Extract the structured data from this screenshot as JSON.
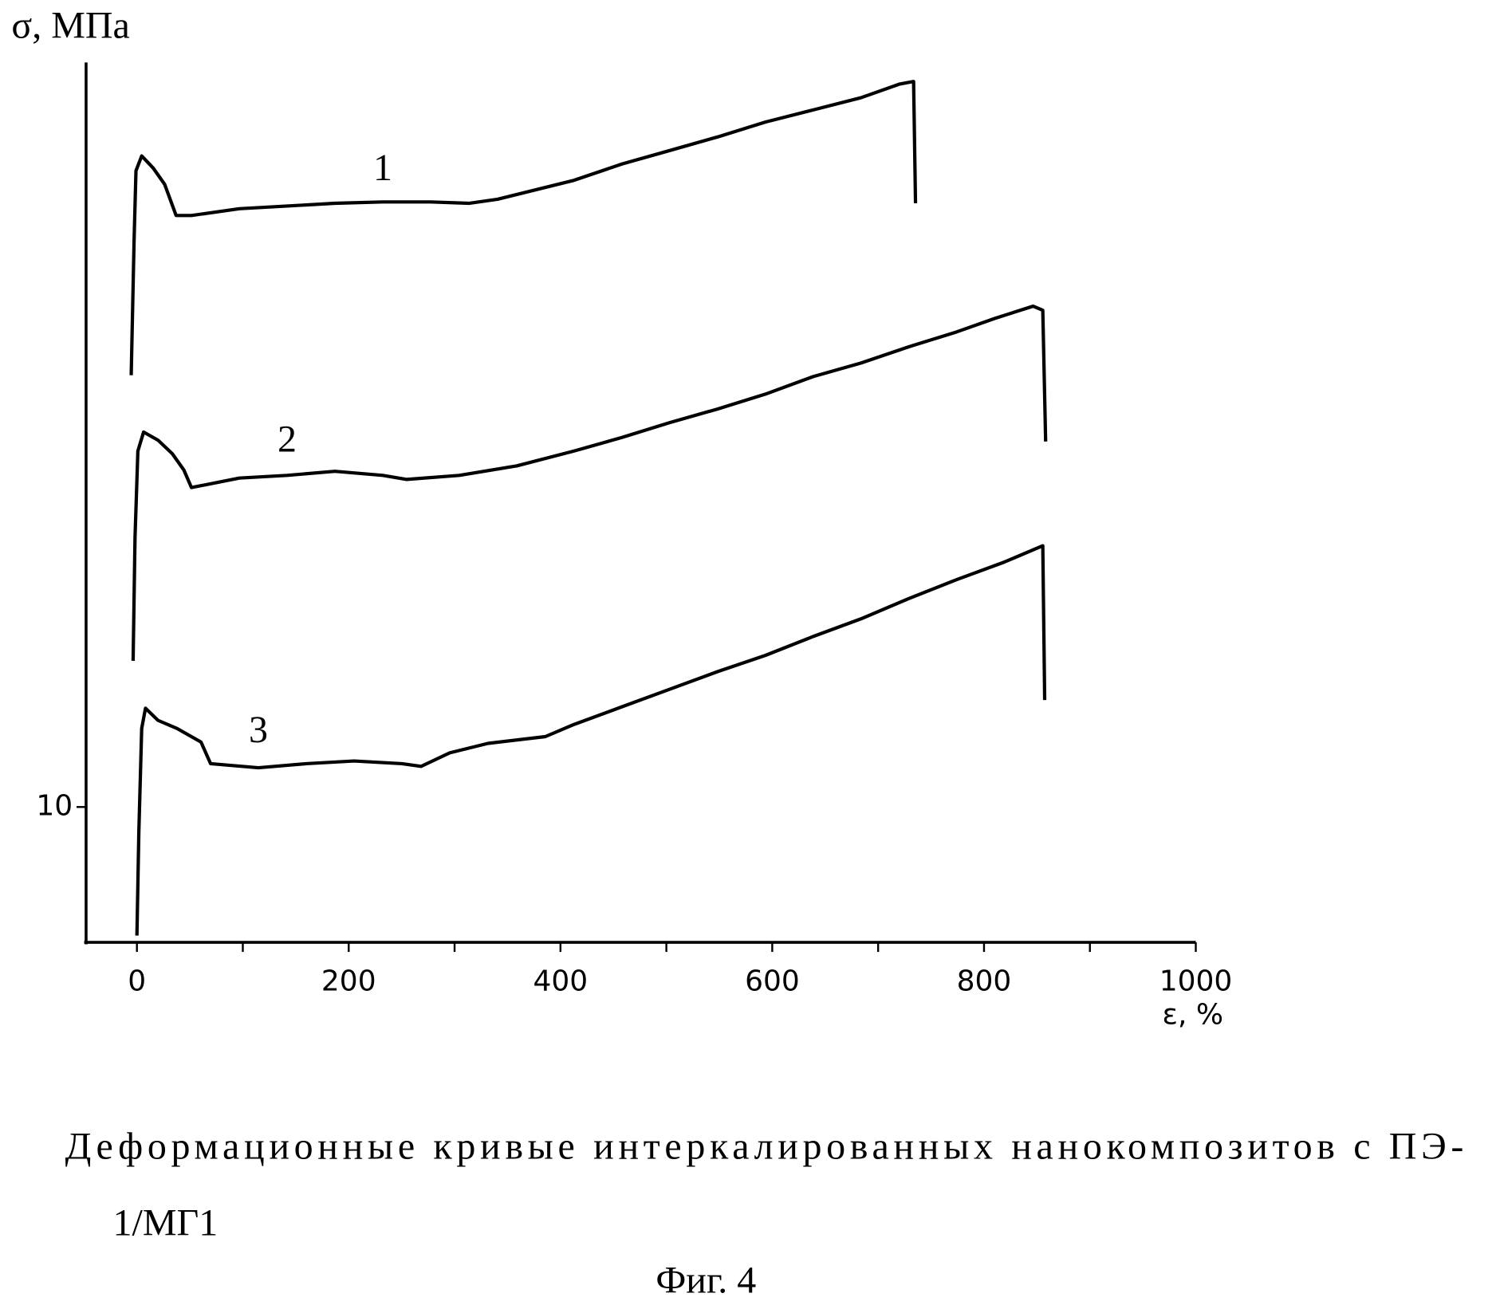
{
  "chart_data": {
    "type": "line",
    "y_label": "σ, МПа",
    "x_label": "ε, %",
    "caption_lines": [
      "Деформационные кривые интеркалированных нанокомпозитов с ПЭ-",
      "1/МГ1"
    ],
    "figure_label": "Фиг. 4",
    "xlim": [
      -48,
      1000
    ],
    "ylim": [
      0,
      65
    ],
    "xticks": [
      0,
      200,
      400,
      600,
      800,
      1000
    ],
    "xminor_ticks": [
      100,
      300,
      500,
      700,
      900
    ],
    "yticks": [
      10
    ],
    "color": "#000000",
    "series": [
      {
        "name": "1",
        "x": [
          -5.4,
          -2.7,
          -0.9,
          4.5,
          15.4,
          26.2,
          37.0,
          51.5,
          96.7,
          141.8,
          187.0,
          232.2,
          277.3,
          313.5,
          340.6,
          376.7,
          412.8,
          458.0,
          503.2,
          548.3,
          593.5,
          638.7,
          683.8,
          719.9,
          733.5,
          735.3
        ],
        "values": [
          41.9,
          51.8,
          57.0,
          58.1,
          57.2,
          56.0,
          53.7,
          53.7,
          54.2,
          54.4,
          54.6,
          54.7,
          54.7,
          54.6,
          54.9,
          55.6,
          56.3,
          57.5,
          58.5,
          59.5,
          60.6,
          61.5,
          62.4,
          63.4,
          63.6,
          54.6
        ]
      },
      {
        "name": "2",
        "x": [
          -3.6,
          -1.8,
          0.9,
          6.3,
          19.9,
          33.4,
          44.3,
          51.5,
          96.7,
          141.8,
          187.0,
          232.2,
          254.7,
          304.4,
          358.6,
          412.8,
          458.0,
          503.2,
          548.3,
          593.5,
          638.7,
          683.8,
          729.0,
          774.2,
          810.3,
          846.4,
          855.5,
          858.2
        ],
        "values": [
          20.8,
          29.9,
          36.3,
          37.7,
          37.1,
          36.1,
          34.9,
          33.6,
          34.3,
          34.5,
          34.8,
          34.5,
          34.2,
          34.5,
          35.2,
          36.3,
          37.3,
          38.4,
          39.4,
          40.5,
          41.8,
          42.8,
          44.0,
          45.1,
          46.1,
          47.0,
          46.7,
          37.0
        ]
      },
      {
        "name": "3",
        "x": [
          0.0,
          1.8,
          4.5,
          8.1,
          19.9,
          37.9,
          60.5,
          69.6,
          114.7,
          159.9,
          205.1,
          250.2,
          268.3,
          295.4,
          331.5,
          385.7,
          412.8,
          458.0,
          503.2,
          548.3,
          593.5,
          638.7,
          683.8,
          729.0,
          774.2,
          819.3,
          855.5,
          857.3
        ],
        "values": [
          0.5,
          8.1,
          15.8,
          17.3,
          16.4,
          15.8,
          14.8,
          13.2,
          12.9,
          13.2,
          13.4,
          13.2,
          13.0,
          14.0,
          14.7,
          15.2,
          16.1,
          17.4,
          18.7,
          20.0,
          21.2,
          22.6,
          23.9,
          25.4,
          26.8,
          28.1,
          29.3,
          17.9
        ]
      }
    ]
  }
}
